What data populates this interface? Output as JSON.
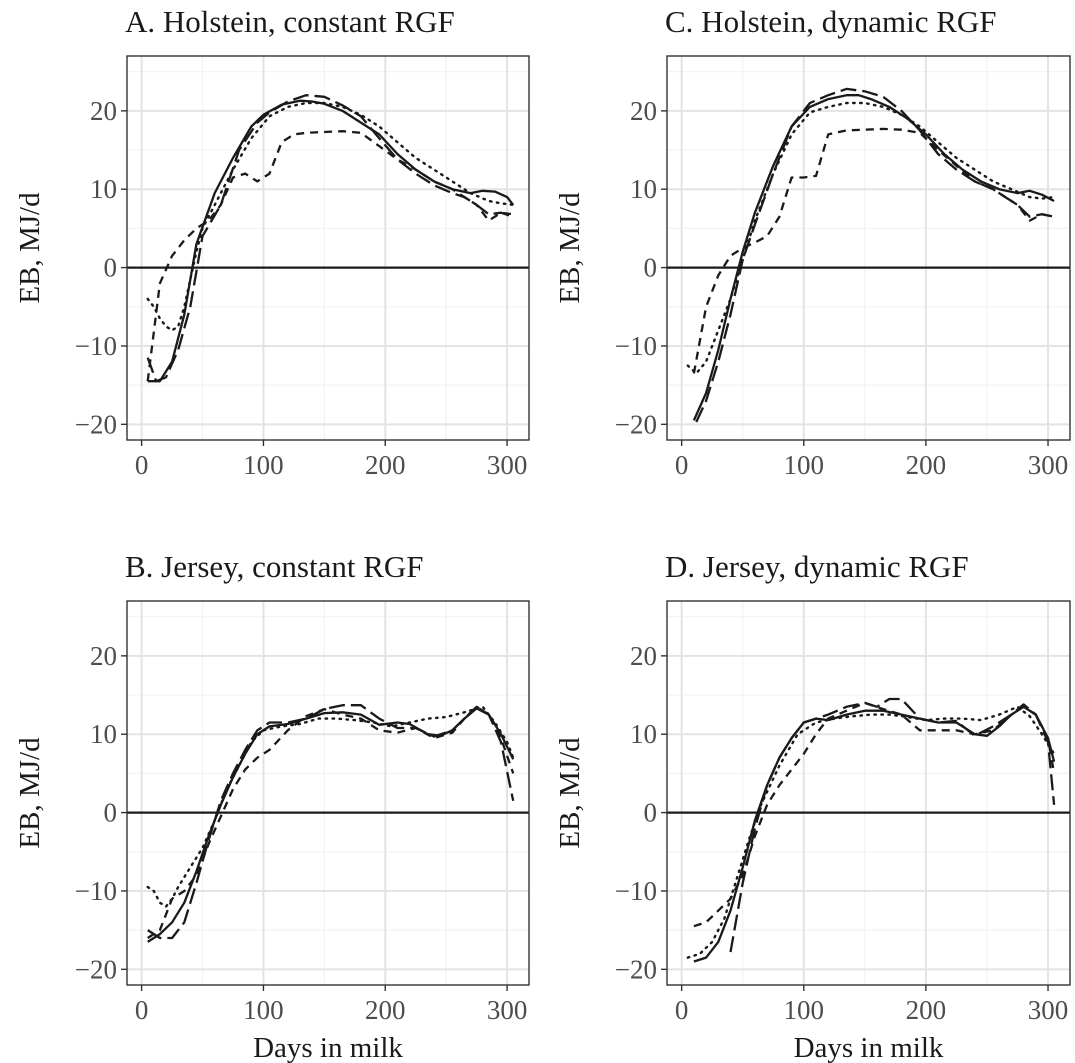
{
  "figure": {
    "colors": {
      "ink": "#1a1a1a",
      "grid_major": "#e3e3e3",
      "grid_minor": "#f2f2f2",
      "panel_border": "#333333",
      "tick_label": "#4d4d4d"
    },
    "line_styles": [
      "solid",
      "long-dash",
      "short-dash",
      "dotted"
    ]
  },
  "chart_data": [
    {
      "type": "line",
      "title": "A. Holstein, constant RGF",
      "xlabel": "",
      "ylabel": "EB, MJ/d",
      "xlim": [
        -12,
        318
      ],
      "ylim": [
        -22,
        27
      ],
      "xticks": [
        0,
        100,
        200,
        300
      ],
      "xtick_labels": [
        "0",
        "100",
        "200",
        "300"
      ],
      "yticks": [
        -20,
        -10,
        0,
        10,
        20
      ],
      "ytick_labels": [
        "−20",
        "−10",
        "0",
        "10",
        "20"
      ],
      "grid": true,
      "hline": 0,
      "series": [
        {
          "style": "solid",
          "x": [
            5,
            15,
            25,
            35,
            45,
            60,
            75,
            90,
            100,
            115,
            130,
            140,
            150,
            165,
            180,
            195,
            210,
            225,
            240,
            255,
            270,
            280,
            290,
            300,
            305
          ],
          "y": [
            -14.5,
            -14.5,
            -12,
            -6,
            3,
            9.5,
            14,
            18,
            19.5,
            20.8,
            21.3,
            21.2,
            20.9,
            20,
            18.5,
            17,
            14.5,
            12.5,
            11,
            10,
            9.5,
            9.8,
            9.7,
            9,
            8
          ]
        },
        {
          "style": "long-dash",
          "x": [
            5,
            12,
            20,
            30,
            40,
            50,
            65,
            80,
            95,
            105,
            120,
            135,
            150,
            165,
            180,
            195,
            210,
            225,
            240,
            255,
            265,
            275,
            285,
            295,
            305
          ],
          "y": [
            -11.5,
            -14.5,
            -14,
            -10.5,
            -5,
            4,
            8,
            15,
            18.5,
            19.8,
            21.2,
            22,
            21.8,
            20.7,
            19.3,
            16.5,
            13.8,
            12,
            10.5,
            9.5,
            9,
            8,
            6.8,
            7,
            6.5
          ]
        },
        {
          "style": "short-dash",
          "x": [
            5,
            15,
            25,
            35,
            45,
            55,
            65,
            75,
            85,
            95,
            105,
            115,
            125,
            135,
            150,
            165,
            180,
            195,
            210,
            225,
            240,
            255,
            265,
            275,
            285,
            295,
            305
          ],
          "y": [
            -14.5,
            -2,
            1.5,
            3.5,
            5,
            6,
            8,
            11.5,
            12,
            11,
            12,
            16,
            17,
            17.2,
            17.3,
            17.4,
            17.2,
            15.5,
            13.8,
            12.5,
            11,
            10,
            9,
            8,
            6,
            7,
            6.8
          ]
        },
        {
          "style": "dotted",
          "x": [
            5,
            10,
            15,
            20,
            25,
            30,
            35,
            40,
            45,
            50,
            60,
            75,
            90,
            105,
            120,
            135,
            150,
            165,
            180,
            195,
            210,
            225,
            240,
            255,
            270,
            285,
            295,
            305
          ],
          "y": [
            -4,
            -5,
            -6.5,
            -7.5,
            -8,
            -7.5,
            -5,
            -1.5,
            2,
            5,
            8,
            12.5,
            16.5,
            19.3,
            20.5,
            21,
            21,
            20.5,
            19.5,
            18,
            16,
            14,
            12.5,
            11,
            9.5,
            8.5,
            8.2,
            8
          ]
        }
      ]
    },
    {
      "type": "line",
      "title": "C. Holstein, dynamic RGF",
      "xlabel": "",
      "ylabel": "EB, MJ/d",
      "xlim": [
        -12,
        318
      ],
      "ylim": [
        -22,
        27
      ],
      "xticks": [
        0,
        100,
        200,
        300
      ],
      "xtick_labels": [
        "0",
        "100",
        "200",
        "300"
      ],
      "yticks": [
        -20,
        -10,
        0,
        10,
        20
      ],
      "ytick_labels": [
        "−20",
        "−10",
        "0",
        "10",
        "20"
      ],
      "grid": true,
      "hline": 0,
      "series": [
        {
          "style": "solid",
          "x": [
            10,
            20,
            30,
            40,
            50,
            60,
            75,
            90,
            105,
            120,
            135,
            145,
            155,
            170,
            185,
            200,
            215,
            230,
            245,
            260,
            275,
            285,
            295,
            305
          ],
          "y": [
            -19.5,
            -16,
            -10.5,
            -4,
            2,
            7,
            13,
            18,
            20.5,
            21.5,
            22,
            22,
            21.5,
            20.5,
            19,
            17,
            14.5,
            12.5,
            11,
            10,
            9.5,
            9.8,
            9.3,
            8.5
          ]
        },
        {
          "style": "long-dash",
          "x": [
            12,
            20,
            30,
            40,
            50,
            60,
            75,
            90,
            105,
            120,
            135,
            150,
            165,
            180,
            195,
            210,
            225,
            240,
            255,
            265,
            275,
            285,
            295,
            305
          ],
          "y": [
            -19.7,
            -17,
            -12,
            -6,
            1,
            5.5,
            12,
            18,
            21,
            22,
            22.8,
            22.5,
            21.8,
            20,
            17.5,
            14.5,
            12.5,
            11,
            10,
            9,
            8,
            6.5,
            6.8,
            6.5
          ]
        },
        {
          "style": "short-dash",
          "x": [
            10,
            20,
            30,
            40,
            50,
            60,
            70,
            80,
            90,
            100,
            110,
            120,
            135,
            150,
            165,
            180,
            195,
            210,
            225,
            240,
            255,
            265,
            275,
            285,
            295,
            305
          ],
          "y": [
            -13.5,
            -5,
            -1,
            1.5,
            2.5,
            3.2,
            4,
            6.5,
            11.5,
            11.5,
            11.7,
            17,
            17.5,
            17.6,
            17.7,
            17.6,
            17.2,
            15,
            13,
            11,
            10,
            9,
            8,
            6,
            6.8,
            6.5
          ]
        },
        {
          "style": "dotted",
          "x": [
            5,
            12,
            20,
            30,
            40,
            50,
            60,
            75,
            90,
            105,
            120,
            135,
            150,
            165,
            180,
            195,
            210,
            225,
            240,
            255,
            270,
            285,
            295,
            305
          ],
          "y": [
            -12.5,
            -13.5,
            -12,
            -8,
            -4,
            1,
            6,
            12,
            17,
            19.8,
            20.5,
            21,
            21,
            20.5,
            19.5,
            18,
            16,
            14,
            12.5,
            11,
            10,
            9,
            8.8,
            9
          ]
        }
      ]
    },
    {
      "type": "line",
      "title": "B. Jersey, constant RGF",
      "xlabel": "Days in milk",
      "ylabel": "EB, MJ/d",
      "xlim": [
        -12,
        318
      ],
      "ylim": [
        -22,
        27
      ],
      "xticks": [
        0,
        100,
        200,
        300
      ],
      "xtick_labels": [
        "0",
        "100",
        "200",
        "300"
      ],
      "yticks": [
        -20,
        -10,
        0,
        10,
        20
      ],
      "ytick_labels": [
        "−20",
        "−10",
        "0",
        "10",
        "20"
      ],
      "grid": true,
      "hline": 0,
      "series": [
        {
          "style": "solid",
          "x": [
            5,
            15,
            25,
            35,
            45,
            55,
            65,
            75,
            85,
            95,
            105,
            120,
            135,
            150,
            165,
            180,
            195,
            210,
            220,
            235,
            245,
            255,
            265,
            275,
            285,
            295,
            305
          ],
          "y": [
            -16.5,
            -15.5,
            -14,
            -11.5,
            -7.5,
            -3,
            1,
            4.5,
            7.5,
            10,
            11,
            11.3,
            12,
            12.7,
            12.8,
            12.5,
            11.2,
            11.5,
            11.3,
            10,
            9.8,
            10.5,
            12,
            13.3,
            12.5,
            10,
            6.8
          ]
        },
        {
          "style": "long-dash",
          "x": [
            5,
            15,
            25,
            35,
            45,
            55,
            65,
            75,
            85,
            95,
            105,
            120,
            135,
            150,
            165,
            180,
            195,
            210,
            225,
            240,
            255,
            265,
            275,
            285,
            295,
            305
          ],
          "y": [
            -15,
            -16,
            -16,
            -14,
            -9,
            -3.5,
            1.5,
            5,
            8,
            10.5,
            11.5,
            11.5,
            12,
            13.2,
            13.7,
            13.7,
            12,
            10.8,
            10.8,
            9.7,
            10.5,
            12,
            13.5,
            12.5,
            9,
            1.5
          ]
        },
        {
          "style": "short-dash",
          "x": [
            5,
            15,
            25,
            35,
            45,
            55,
            65,
            75,
            85,
            95,
            105,
            120,
            135,
            150,
            165,
            180,
            195,
            210,
            225,
            240,
            255,
            265,
            275,
            285,
            295,
            305
          ],
          "y": [
            -16,
            -15,
            -11,
            -10,
            -8,
            -4,
            -0.5,
            3,
            5.5,
            7,
            8,
            10.5,
            12.3,
            13.2,
            12.5,
            12,
            10.5,
            10.2,
            10.8,
            9.5,
            10.2,
            12,
            13.5,
            12.5,
            9.5,
            5
          ]
        },
        {
          "style": "dotted",
          "x": [
            5,
            10,
            15,
            20,
            25,
            30,
            40,
            50,
            60,
            70,
            80,
            90,
            100,
            115,
            130,
            145,
            160,
            175,
            190,
            205,
            220,
            235,
            250,
            265,
            280,
            290,
            300,
            305
          ],
          "y": [
            -9.5,
            -10,
            -11.5,
            -12,
            -11,
            -9.5,
            -7,
            -4.5,
            -1,
            3,
            6,
            9,
            10.5,
            11,
            11.3,
            12,
            12,
            11.8,
            11.5,
            11,
            11.5,
            12,
            12.2,
            12.8,
            13.5,
            11.5,
            9,
            7
          ]
        }
      ]
    },
    {
      "type": "line",
      "title": "D. Jersey, dynamic RGF",
      "xlabel": "Days in milk",
      "ylabel": "EB, MJ/d",
      "xlim": [
        -12,
        318
      ],
      "ylim": [
        -22,
        27
      ],
      "xticks": [
        0,
        100,
        200,
        300
      ],
      "xtick_labels": [
        "0",
        "100",
        "200",
        "300"
      ],
      "yticks": [
        -20,
        -10,
        0,
        10,
        20
      ],
      "ytick_labels": [
        "−20",
        "−10",
        "0",
        "10",
        "20"
      ],
      "grid": true,
      "hline": 0,
      "series": [
        {
          "style": "solid",
          "x": [
            10,
            20,
            30,
            40,
            50,
            60,
            70,
            80,
            90,
            100,
            110,
            120,
            135,
            150,
            165,
            180,
            195,
            210,
            225,
            240,
            250,
            260,
            270,
            280,
            290,
            300,
            305
          ],
          "y": [
            -19,
            -18.5,
            -16.5,
            -12.5,
            -7,
            -1,
            3.5,
            7,
            9.5,
            11.5,
            12,
            11.8,
            12.5,
            13,
            13,
            12.5,
            12,
            11.5,
            11.5,
            10,
            9.8,
            11,
            12.5,
            13.5,
            12.5,
            9.5,
            6.5
          ]
        },
        {
          "style": "long-dash",
          "x": [
            40,
            50,
            60,
            70,
            80,
            90,
            100,
            110,
            120,
            135,
            150,
            160,
            170,
            180,
            195,
            210,
            225,
            240,
            255,
            270,
            280,
            290,
            300,
            305
          ],
          "y": [
            -17.8,
            -9,
            -2,
            3.5,
            7,
            9.5,
            11.5,
            12,
            12.5,
            13.5,
            14,
            13.5,
            14.5,
            14.5,
            12,
            11.5,
            11.7,
            9.8,
            11,
            12.5,
            13.8,
            12.5,
            9,
            1
          ]
        },
        {
          "style": "short-dash",
          "x": [
            10,
            20,
            30,
            40,
            50,
            60,
            70,
            80,
            90,
            100,
            110,
            120,
            135,
            150,
            165,
            180,
            195,
            210,
            225,
            240,
            255,
            270,
            280,
            290,
            300,
            305
          ],
          "y": [
            -14.5,
            -14,
            -12.5,
            -11,
            -8,
            -3,
            1,
            3.5,
            5.5,
            7.5,
            10,
            12,
            13,
            14,
            13.2,
            12.5,
            10.5,
            10.5,
            10.5,
            10,
            10.5,
            12.5,
            13.5,
            12.5,
            9.5,
            5
          ]
        },
        {
          "style": "dotted",
          "x": [
            5,
            15,
            25,
            35,
            45,
            55,
            65,
            80,
            95,
            110,
            125,
            140,
            155,
            170,
            185,
            200,
            215,
            230,
            245,
            260,
            275,
            285,
            295,
            305
          ],
          "y": [
            -18.5,
            -18,
            -16.5,
            -13.5,
            -8.5,
            -3.5,
            1,
            6,
            10,
            11.5,
            12,
            12.3,
            12.5,
            12.5,
            12.2,
            11.8,
            12,
            12,
            11.8,
            12.5,
            13.5,
            12.3,
            10,
            7.5
          ]
        }
      ]
    }
  ]
}
